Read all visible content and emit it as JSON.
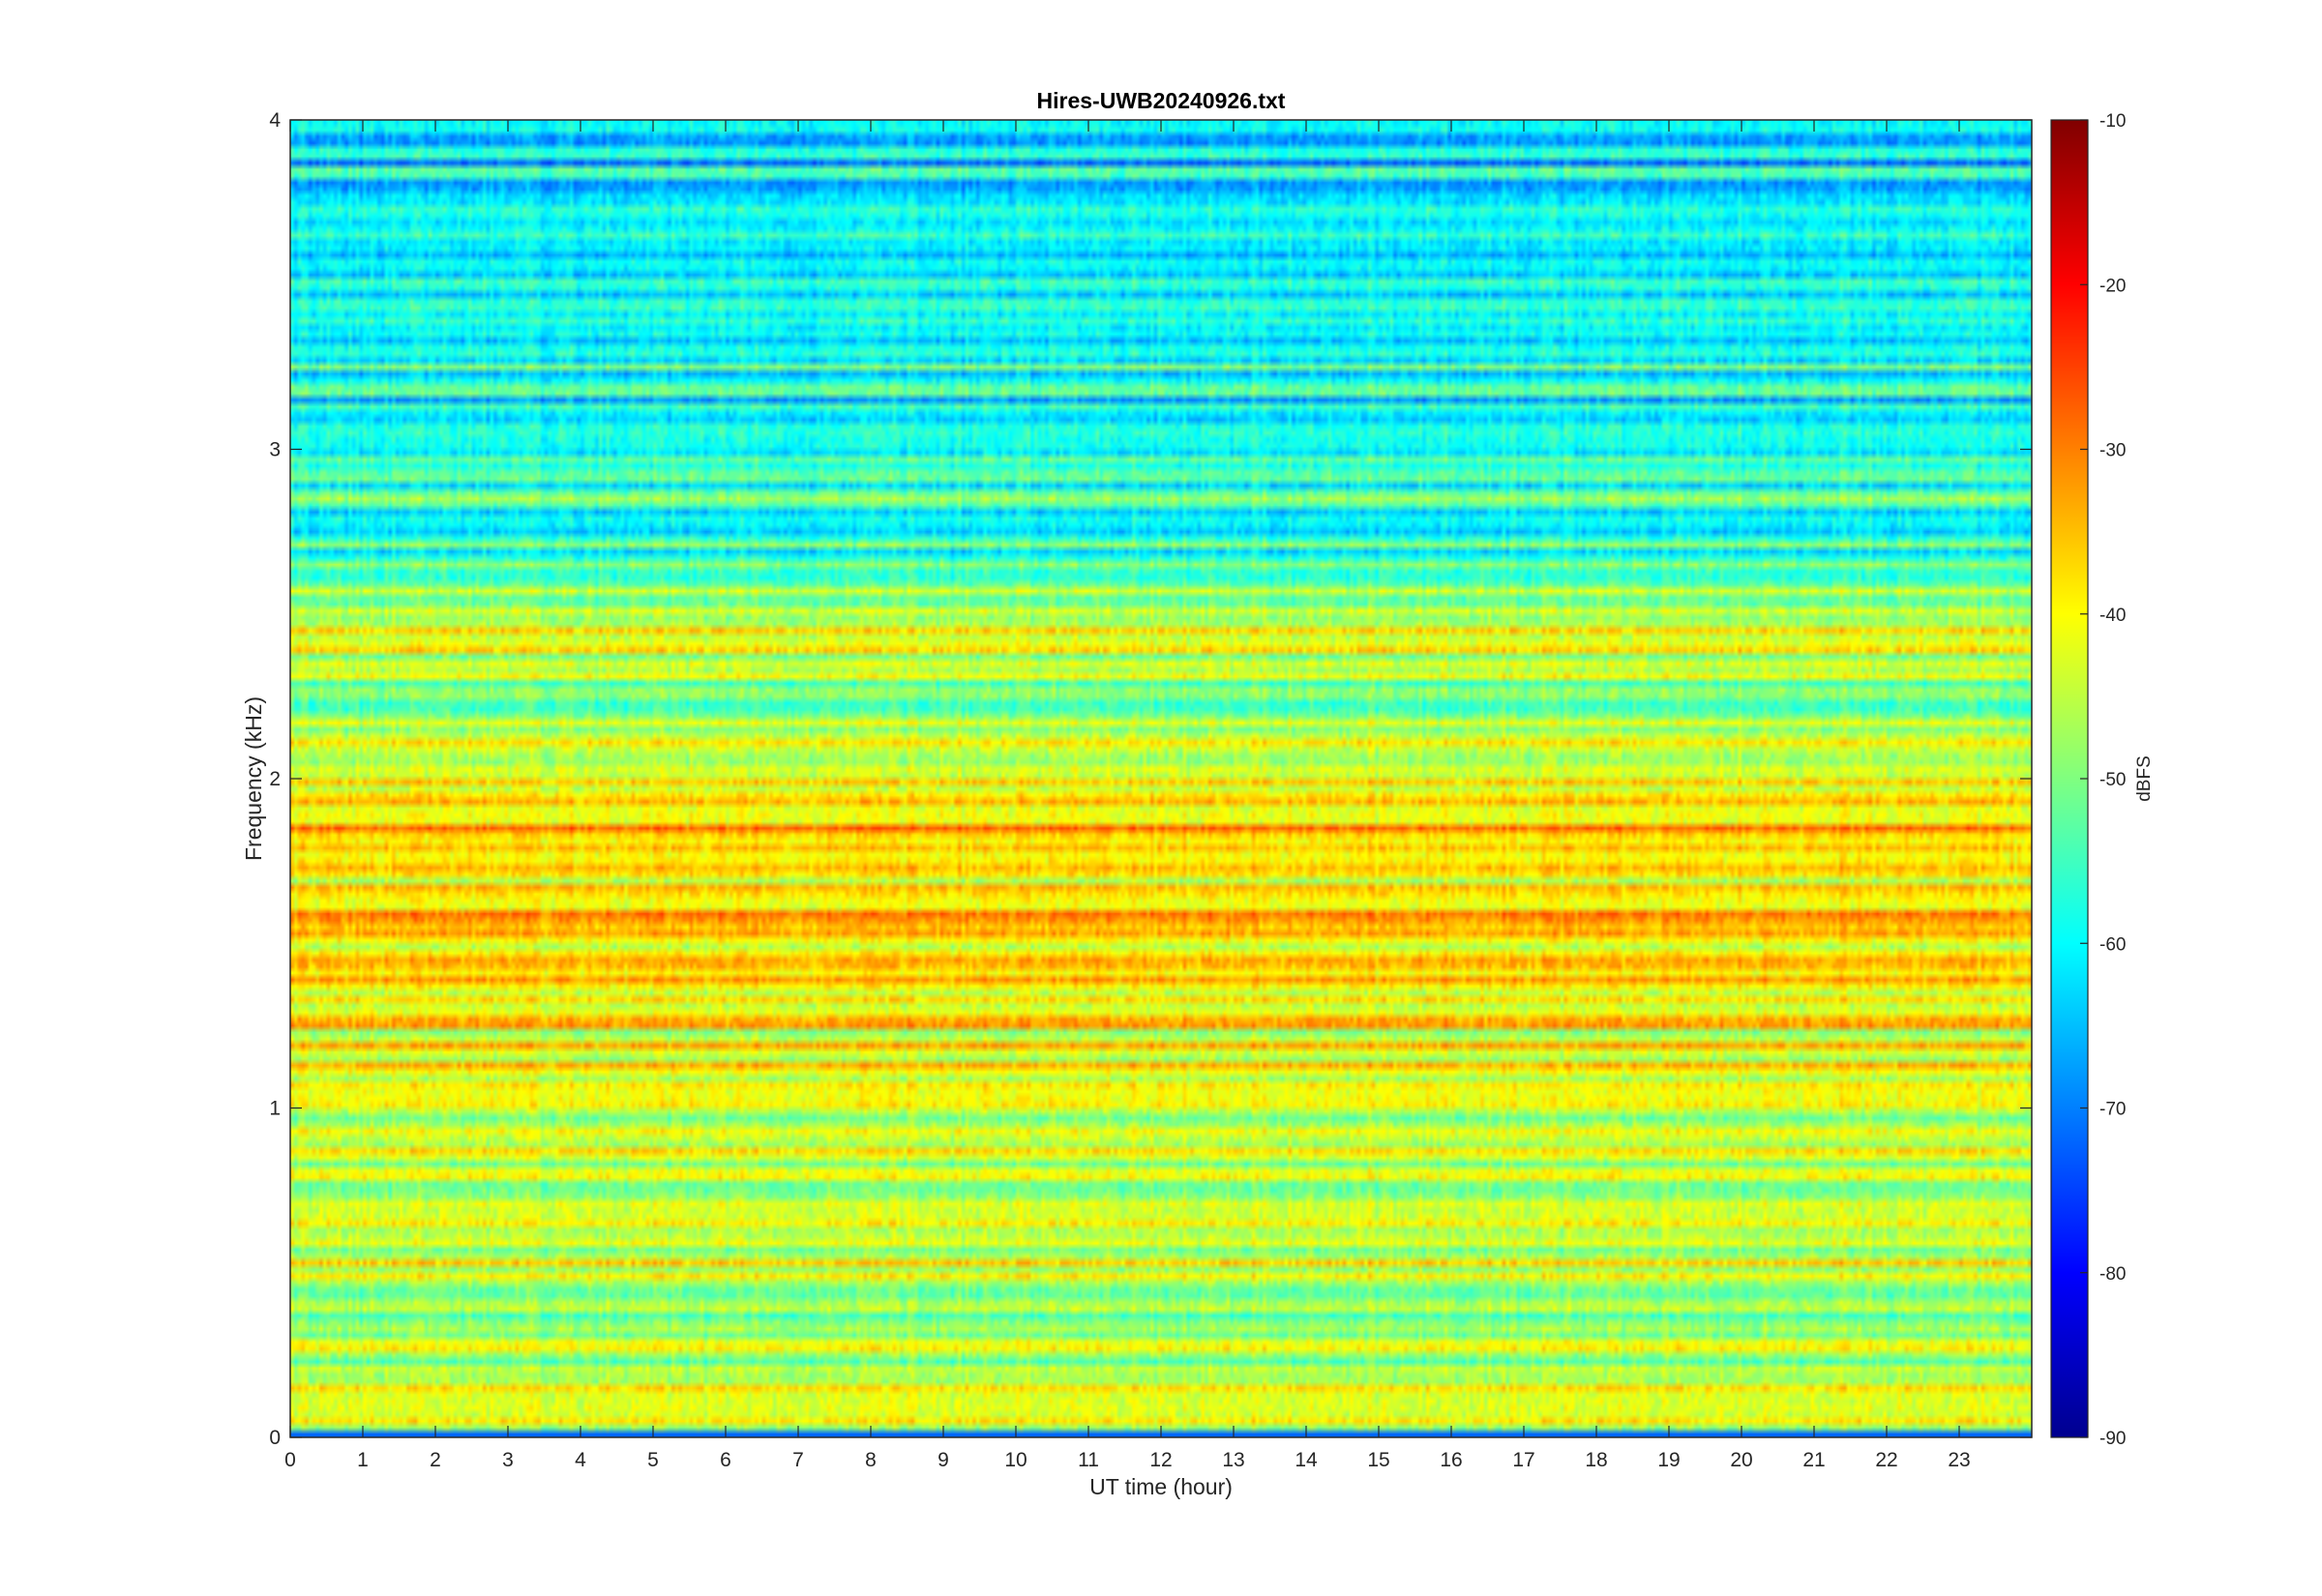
{
  "chart_data": {
    "type": "heatmap",
    "title": "Hires-UWB20240926.txt",
    "xlabel": "UT time (hour)",
    "ylabel": "Frequency (kHz)",
    "xlim": [
      0,
      24
    ],
    "ylim": [
      0,
      4
    ],
    "x_ticks": [
      "0",
      "1",
      "2",
      "3",
      "4",
      "5",
      "6",
      "7",
      "8",
      "9",
      "10",
      "11",
      "12",
      "13",
      "14",
      "15",
      "16",
      "17",
      "18",
      "19",
      "20",
      "21",
      "22",
      "23"
    ],
    "y_ticks": [
      "0",
      "1",
      "2",
      "3",
      "4"
    ],
    "colorbar": {
      "label": "dBFS",
      "range": [
        -90,
        -10
      ],
      "ticks": [
        "-10",
        "-20",
        "-30",
        "-40",
        "-50",
        "-60",
        "-70",
        "-80",
        "-90"
      ],
      "colormap": "jet"
    },
    "band_levels_dBFS": [
      {
        "freq_khz": 0.05,
        "level": -43
      },
      {
        "freq_khz": 0.35,
        "level": -45
      },
      {
        "freq_khz": 0.55,
        "level": -44
      },
      {
        "freq_khz": 0.75,
        "level": -47
      },
      {
        "freq_khz": 0.95,
        "level": -46
      },
      {
        "freq_khz": 1.05,
        "level": -40
      },
      {
        "freq_khz": 1.35,
        "level": -40
      },
      {
        "freq_khz": 1.55,
        "level": -35
      },
      {
        "freq_khz": 1.75,
        "level": -42
      },
      {
        "freq_khz": 1.85,
        "level": -36
      },
      {
        "freq_khz": 1.95,
        "level": -42
      },
      {
        "freq_khz": 2.2,
        "level": -47
      },
      {
        "freq_khz": 2.45,
        "level": -45
      },
      {
        "freq_khz": 2.75,
        "level": -57
      },
      {
        "freq_khz": 3.0,
        "level": -58
      },
      {
        "freq_khz": 3.5,
        "level": -60
      },
      {
        "freq_khz": 3.9,
        "level": -62
      }
    ]
  }
}
